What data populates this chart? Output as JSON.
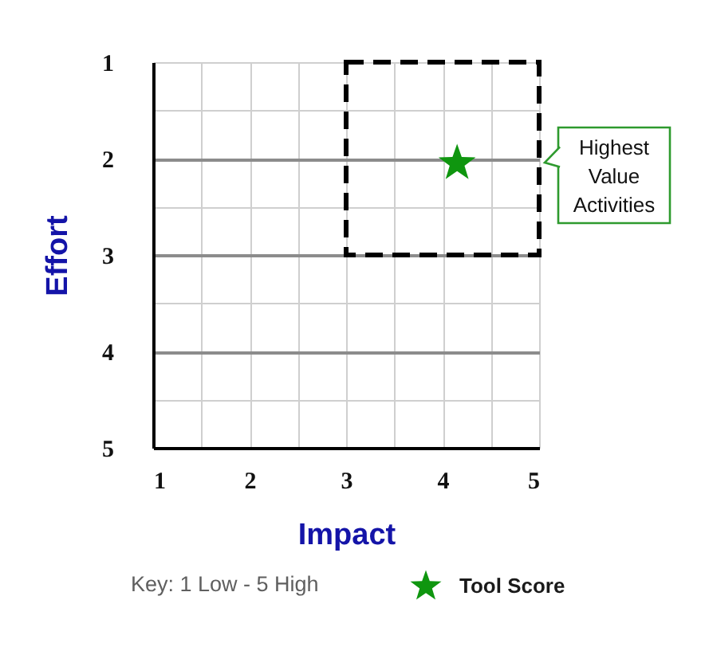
{
  "chart_data": {
    "type": "scatter",
    "xlabel": "Impact",
    "ylabel": "Effort",
    "xlim": [
      1,
      5
    ],
    "ylim": [
      5,
      1
    ],
    "xticks": [
      1,
      {
        "value": 1.5,
        "label": null
      },
      2,
      {
        "value": 2.5,
        "label": null
      },
      3,
      {
        "value": 3.5,
        "label": null
      },
      4,
      {
        "value": 4.5,
        "label": null
      },
      5
    ],
    "yticks": [
      1,
      {
        "value": 1.5,
        "label": null
      },
      2,
      {
        "value": 2.5,
        "label": null
      },
      3,
      {
        "value": 3.5,
        "label": null
      },
      4,
      {
        "value": 4.5,
        "label": null
      },
      5
    ],
    "grid": true,
    "legend": "bottom",
    "marker": "star",
    "series": [
      {
        "type": "scatter",
        "name": "Tool Score",
        "color": "#0f960f",
        "x": [
          4.15
        ],
        "values": [
          2.05
        ]
      }
    ],
    "annotations": [
      "Key: 1 Low - 5 High",
      "Highest Value Activities"
    ]
  }
}
